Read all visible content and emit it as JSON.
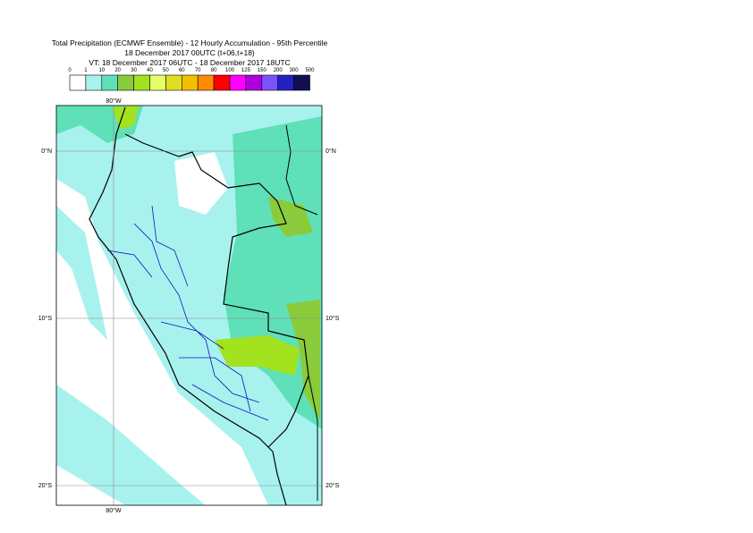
{
  "header": {
    "title": "Total Precipitation (ECMWF Ensemble) - 12 Hourly Accumulation - 95th Percentile",
    "base_time": "18 December 2017 00UTC (t+06,t+18)",
    "valid_time": "VT: 18 December 2017 06UTC - 18 December 2017 18UTC"
  },
  "legend": {
    "labels": [
      "0",
      "1",
      "10",
      "20",
      "30",
      "40",
      "50",
      "60",
      "70",
      "80",
      "100",
      "125",
      "150",
      "200",
      "300",
      "500"
    ],
    "colors": [
      "#ffffff",
      "#a8f2ee",
      "#5fe0b8",
      "#8acb3c",
      "#a2e21e",
      "#e6ff66",
      "#dede22",
      "#f2c000",
      "#ff8c00",
      "#ff0000",
      "#ff00ff",
      "#b000e0",
      "#7a52ff",
      "#2222c0",
      "#10104e"
    ]
  },
  "map": {
    "lat_labels": [
      "0°N",
      "10°S",
      "20°S"
    ],
    "lon_labels": [
      "80°W"
    ]
  }
}
